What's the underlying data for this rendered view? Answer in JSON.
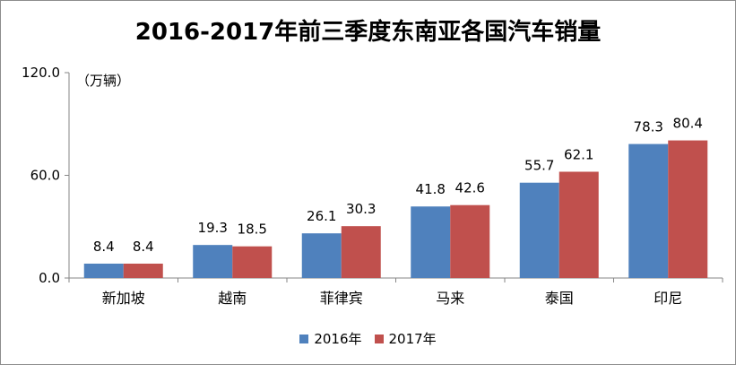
{
  "chart_data": {
    "type": "bar",
    "title": "2016-2017年前三季度东南亚各国汽车销量",
    "unit_label": "（万辆）",
    "categories": [
      "新加坡",
      "越南",
      "菲律宾",
      "马来",
      "泰国",
      "印尼"
    ],
    "series": [
      {
        "name": "2016年",
        "color": "#4f81bd",
        "values": [
          8.4,
          19.3,
          26.1,
          41.8,
          55.7,
          78.3
        ]
      },
      {
        "name": "2017年",
        "color": "#c0504d",
        "values": [
          8.4,
          18.5,
          30.3,
          42.6,
          62.1,
          80.4
        ]
      }
    ],
    "ylim": [
      0,
      120
    ],
    "yticks": [
      "0.0",
      "60.0",
      "120.0"
    ],
    "grid": false,
    "legend_position": "bottom"
  }
}
